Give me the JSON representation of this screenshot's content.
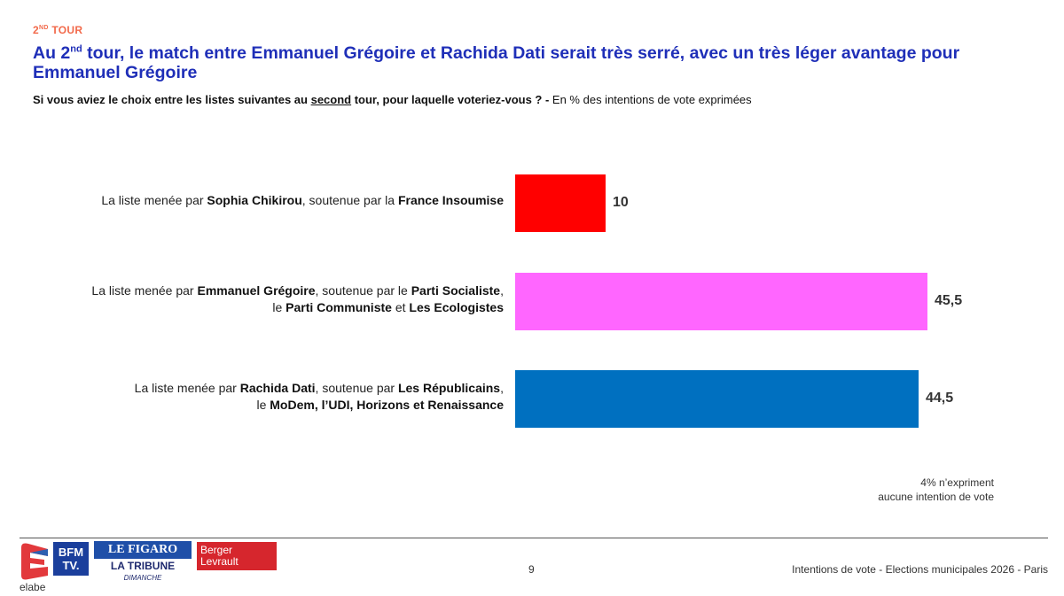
{
  "header": {
    "tag_main": "2",
    "tag_sup": "ND",
    "tag_rest": " TOUR",
    "title_part1": "Au 2",
    "title_sup": "nd",
    "title_part2": " tour, le match entre Emmanuel Grégoire et Rachida Dati serait très serré, avec un très léger avantage pour Emmanuel Grégoire",
    "question_part1": "Si vous aviez le choix entre les listes suivantes au ",
    "question_underlined": "second",
    "question_part2": " tour, pour laquelle voteriez-vous ? - ",
    "question_note": "En % des intentions de vote exprimées"
  },
  "chart_data": {
    "type": "bar",
    "orientation": "horizontal",
    "xlim": [
      0,
      50
    ],
    "grid": false,
    "categories": [
      {
        "lines": [
          [
            [
              "La liste menée par ",
              false
            ],
            [
              "Sophia Chikirou",
              true
            ],
            [
              ", soutenue par la ",
              false
            ],
            [
              "France Insoumise",
              true
            ]
          ]
        ]
      },
      {
        "lines": [
          [
            [
              "La liste menée par ",
              false
            ],
            [
              "Emmanuel Grégoire",
              true
            ],
            [
              ", soutenue par le ",
              false
            ],
            [
              "Parti Socialiste",
              true
            ],
            [
              ",",
              false
            ]
          ],
          [
            [
              "le ",
              false
            ],
            [
              "Parti Communiste",
              true
            ],
            [
              " et ",
              false
            ],
            [
              "Les Ecologistes",
              true
            ]
          ]
        ]
      },
      {
        "lines": [
          [
            [
              "La liste menée par ",
              false
            ],
            [
              "Rachida Dati",
              true
            ],
            [
              ", soutenue par ",
              false
            ],
            [
              "Les Républicains",
              true
            ],
            [
              ",",
              false
            ]
          ],
          [
            [
              "le ",
              false
            ],
            [
              "MoDem, l’UDI, Horizons et Renaissance",
              true
            ]
          ]
        ]
      }
    ],
    "values": [
      10,
      45.5,
      44.5
    ],
    "value_labels": [
      "10",
      "45,5",
      "44,5"
    ],
    "colors": [
      "#ff0000",
      "#ff66ff",
      "#0070c0"
    ],
    "note_lines": [
      "4% n’expriment",
      "aucune intention de vote"
    ]
  },
  "footer": {
    "page_number": "9",
    "text": "Intentions de vote - Elections municipales 2026 - Paris",
    "logos": {
      "elabe": "elabe",
      "bfm_line1": "BFM",
      "bfm_line2": "TV.",
      "figaro": "LE FIGARO",
      "tribune": "LA TRIBUNE",
      "tribune_sub": "DIMANCHE",
      "berger_line1": "Berger",
      "berger_line2": "Levrault"
    }
  }
}
